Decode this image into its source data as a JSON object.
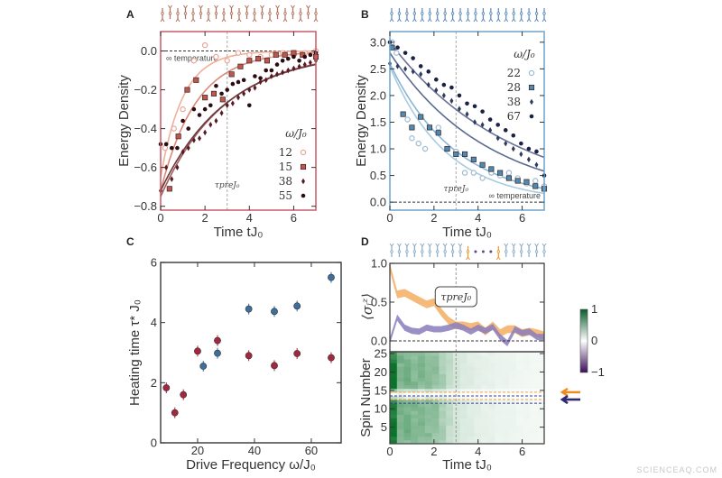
{
  "watermark": "SCIENCEAQ.COM",
  "chart_data": [
    {
      "panel": "A",
      "type": "scatter",
      "xlabel": "Time tJ₀",
      "ylabel": "Energy Density",
      "xlim": [
        0,
        7
      ],
      "ylim": [
        -0.82,
        0.1
      ],
      "xticks": [
        "0",
        "2",
        "4",
        "6"
      ],
      "xtick_values": [
        0,
        2,
        4,
        6
      ],
      "yticks": [
        "0.0",
        "−0.2",
        "−0.4",
        "−0.6",
        "−0.8"
      ],
      "ytick_values": [
        0,
        -0.2,
        -0.4,
        -0.6,
        -0.8
      ],
      "frame_color": "#c85a68",
      "reference_line": {
        "value": 0,
        "label": "∞ temperature"
      },
      "vline": {
        "value": 3,
        "label": "τpreJ₀"
      },
      "legend_title": "ω/J₀",
      "legend_placement": "bottom-right",
      "series": [
        {
          "name": "12",
          "marker": "circle",
          "color": "#e9a697",
          "fit_color": "#f2b09a",
          "fit": {
            "E0": -0.65,
            "tau": 1.0
          },
          "x": [
            0.2,
            0.6,
            1.0,
            1.5,
            2.0,
            2.5,
            3.0,
            3.5,
            4.0,
            4.5,
            5.0,
            5.5,
            6.0,
            6.5,
            7.0
          ],
          "y": [
            -0.5,
            -0.4,
            -0.3,
            -0.05,
            0.03,
            -0.03,
            -0.05,
            -0.01,
            -0.02,
            -0.03,
            -0.02,
            -0.01,
            -0.02,
            -0.01,
            0.0
          ]
        },
        {
          "name": "15",
          "marker": "square",
          "color": "#c0574e",
          "fit_color": "#dc8a78",
          "fit": {
            "E0": -0.72,
            "tau": 1.6
          },
          "x": [
            0.4,
            0.8,
            1.2,
            1.6,
            2.0,
            2.4,
            2.8,
            3.2,
            3.6,
            4.0,
            4.4,
            4.8,
            5.2,
            5.6,
            6.0,
            6.4,
            7.0
          ],
          "y": [
            -0.71,
            -0.44,
            -0.2,
            -0.15,
            -0.24,
            -0.22,
            -0.25,
            -0.12,
            -0.08,
            -0.05,
            -0.04,
            -0.05,
            -0.02,
            -0.02,
            -0.01,
            -0.02,
            -0.03
          ]
        },
        {
          "name": "38",
          "marker": "diamond",
          "color": "#5a1a24",
          "fit_color": "#a06060",
          "fit": {
            "E0": -0.75,
            "tau": 2.9
          },
          "x": [
            0,
            0.25,
            0.5,
            0.75,
            1,
            1.25,
            1.5,
            1.75,
            2,
            2.25,
            2.5,
            2.75,
            3,
            3.25,
            3.5,
            3.75,
            4,
            4.25,
            4.5,
            4.75,
            5,
            5.25,
            5.5,
            5.75,
            6,
            6.25,
            6.5,
            6.75,
            7
          ],
          "y": [
            -0.72,
            -0.6,
            -0.66,
            -0.6,
            -0.52,
            -0.5,
            -0.46,
            -0.45,
            -0.42,
            -0.38,
            -0.36,
            -0.32,
            -0.28,
            -0.27,
            -0.24,
            -0.22,
            -0.2,
            -0.19,
            -0.16,
            -0.15,
            -0.13,
            -0.12,
            -0.11,
            -0.1,
            -0.09,
            -0.08,
            -0.07,
            -0.06,
            -0.05
          ]
        },
        {
          "name": "55",
          "marker": "dot",
          "color": "#2a0c12",
          "fit_color": "#6a3a3e",
          "fit": {
            "E0": -0.72,
            "tau": 3.0
          },
          "x": [
            0,
            0.25,
            0.5,
            0.75,
            1,
            1.25,
            1.5,
            1.75,
            2,
            2.25,
            2.5,
            2.75,
            3,
            3.25,
            3.5,
            3.75,
            4,
            4.25,
            4.5,
            4.75,
            5,
            5.25,
            5.5,
            5.75,
            6,
            6.25,
            6.5,
            6.75,
            7
          ],
          "y": [
            -0.48,
            -0.48,
            -0.5,
            -0.5,
            -0.36,
            -0.4,
            -0.3,
            -0.33,
            -0.3,
            -0.28,
            -0.18,
            -0.22,
            -0.2,
            -0.17,
            -0.16,
            -0.15,
            -0.28,
            -0.13,
            -0.14,
            -0.1,
            -0.1,
            -0.07,
            -0.05,
            -0.04,
            -0.03,
            -0.05,
            -0.03,
            -0.02,
            -0.01
          ]
        }
      ]
    },
    {
      "panel": "B",
      "type": "scatter",
      "xlabel": "Time tJ₀",
      "ylabel": "Energy Density",
      "xlim": [
        0,
        7
      ],
      "ylim": [
        -0.15,
        3.2
      ],
      "xticks": [
        "0",
        "2",
        "4",
        "6"
      ],
      "xtick_values": [
        0,
        2,
        4,
        6
      ],
      "yticks": [
        "0.0",
        "0.5",
        "1.0",
        "1.5",
        "2.0",
        "2.5",
        "3.0"
      ],
      "ytick_values": [
        0,
        0.5,
        1.0,
        1.5,
        2.0,
        2.5,
        3.0
      ],
      "frame_color": "#6fa3c9",
      "reference_line": {
        "value": 0,
        "label": "∞ temperature"
      },
      "vline": {
        "value": 3,
        "label": "τpreJ₀"
      },
      "legend_title": "ω/J₀",
      "legend_placement": "top-right",
      "series": [
        {
          "name": "22",
          "marker": "circle",
          "color": "#9dbbd0",
          "fit_color": "#a8cbe0",
          "fit": {
            "E0": 2.55,
            "tau": 2.55
          },
          "x": [
            0.1,
            0.3,
            0.8,
            1.0,
            1.3,
            1.6,
            2.2,
            2.6,
            3.0,
            3.4,
            3.8,
            4.2,
            4.6,
            5.0,
            5.4,
            5.8,
            6.2,
            6.6,
            7.0
          ],
          "y": [
            3.0,
            2.8,
            1.55,
            1.2,
            1.1,
            1.0,
            1.4,
            1.0,
            0.95,
            0.55,
            0.55,
            0.45,
            0.55,
            0.5,
            0.55,
            0.45,
            0.35,
            0.4,
            0.3
          ]
        },
        {
          "name": "28",
          "marker": "square",
          "color": "#4c8bb4",
          "fit_color": "#8ab6d4",
          "fit": {
            "E0": 2.6,
            "tau": 3.0
          },
          "x": [
            0.1,
            0.6,
            1.0,
            1.4,
            1.8,
            2.2,
            2.6,
            3.0,
            3.4,
            3.8,
            4.2,
            4.6,
            5.0,
            5.4,
            5.8,
            6.2,
            6.6,
            7.0
          ],
          "y": [
            2.9,
            1.65,
            1.4,
            1.6,
            1.4,
            1.3,
            1.0,
            0.9,
            0.9,
            0.8,
            0.7,
            0.62,
            0.55,
            0.45,
            0.4,
            0.38,
            0.3,
            0.25
          ]
        },
        {
          "name": "38",
          "marker": "diamond",
          "color": "#2c3c5e",
          "fit_color": "#5a6a90",
          "fit": {
            "E0": 2.8,
            "tau": 4.45
          },
          "x": [
            0,
            0.35,
            0.7,
            1.05,
            1.4,
            1.75,
            2.1,
            2.45,
            2.8,
            3.15,
            3.5,
            3.85,
            4.2,
            4.55,
            4.9,
            5.25,
            5.6,
            5.95,
            6.3,
            6.65,
            7.0
          ],
          "y": [
            2.6,
            2.55,
            2.5,
            2.45,
            2.4,
            2.2,
            2.1,
            2.0,
            1.9,
            1.75,
            1.65,
            1.5,
            1.45,
            1.35,
            1.2,
            1.1,
            1.0,
            0.9,
            0.8,
            0.7,
            0.5
          ]
        },
        {
          "name": "67",
          "marker": "dot",
          "color": "#1a2244",
          "fit_color": "#6a7098",
          "fit": {
            "E0": 3.0,
            "tau": 5.5
          },
          "x": [
            0,
            0.35,
            0.7,
            1.05,
            1.4,
            1.75,
            2.1,
            2.45,
            2.8,
            3.15,
            3.5,
            3.85,
            4.2,
            4.55,
            4.9,
            5.25,
            5.6,
            5.95,
            6.3,
            6.65,
            7.0
          ],
          "y": [
            3.0,
            2.9,
            2.8,
            2.7,
            2.55,
            2.45,
            2.3,
            2.2,
            2.15,
            2.0,
            1.85,
            1.8,
            1.7,
            1.55,
            1.45,
            1.35,
            1.25,
            1.1,
            1.0,
            0.95,
            0.5
          ]
        }
      ]
    },
    {
      "panel": "C",
      "type": "scatter",
      "xlabel": "Drive Frequency ω/J₀",
      "ylabel": "Heating time τ* J₀",
      "xlim": [
        7,
        70.5
      ],
      "ylim": [
        0,
        6
      ],
      "xticks": [
        "20",
        "40",
        "60"
      ],
      "xtick_values": [
        20,
        40,
        60
      ],
      "yticks": [
        "0",
        "2",
        "4",
        "6"
      ],
      "ytick_values": [
        0,
        2,
        4,
        6
      ],
      "series": [
        {
          "color": "#a3283f",
          "x": [
            9,
            12,
            15,
            20,
            27,
            38,
            47,
            55,
            67
          ],
          "y": [
            1.83,
            1.0,
            1.6,
            3.05,
            3.4,
            2.9,
            2.57,
            2.97,
            2.83
          ],
          "err": 0.18
        },
        {
          "color": "#3e6e9c",
          "x": [
            22,
            27,
            38,
            47,
            55,
            67
          ],
          "y": [
            2.55,
            2.98,
            4.45,
            4.37,
            4.55,
            5.5
          ],
          "err": 0.18
        }
      ]
    },
    {
      "panel": "D",
      "type": "line",
      "xlabel": "Time tJ₀",
      "ylabel": "⟨σᵢᶻ⟩",
      "xlim": [
        0,
        7
      ],
      "ylim": [
        -0.1,
        1.0
      ],
      "xticks": [
        "0",
        "2",
        "4",
        "6"
      ],
      "xtick_values": [
        0,
        2,
        4,
        6
      ],
      "yticks": [
        "1.0",
        "0.5",
        "0.0"
      ],
      "ytick_values": [
        1.0,
        0.5,
        0.0
      ],
      "vline": {
        "value": 3,
        "label": "τpreJ₀"
      },
      "series": [
        {
          "color": "#f4b36c",
          "band": 0.05,
          "x": [
            0,
            0.33,
            0.67,
            1,
            1.33,
            1.67,
            2,
            2.33,
            2.67,
            3,
            3.33,
            3.67,
            4,
            4.33,
            4.67,
            5,
            5.33,
            5.67,
            6,
            6.33,
            6.67,
            7
          ],
          "y": [
            0.95,
            0.6,
            0.62,
            0.57,
            0.52,
            0.47,
            0.5,
            0.37,
            0.26,
            0.2,
            0.2,
            0.18,
            0.2,
            0.12,
            0.2,
            0.1,
            0.15,
            0.15,
            0.1,
            0.12,
            0.1,
            0.07
          ]
        },
        {
          "color": "#8a7cbc",
          "band": 0.04,
          "x": [
            0,
            0.33,
            0.67,
            1,
            1.33,
            1.67,
            2,
            2.33,
            2.67,
            3,
            3.33,
            3.67,
            4,
            4.33,
            4.67,
            5,
            5.33,
            5.67,
            6,
            6.33,
            6.67,
            7
          ],
          "y": [
            0.0,
            0.3,
            0.17,
            0.13,
            0.12,
            0.17,
            0.15,
            0.15,
            0.17,
            0.2,
            0.17,
            0.12,
            0.17,
            0.13,
            0.18,
            0.05,
            -0.03,
            0.15,
            0.1,
            0.12,
            0.05,
            0.05
          ]
        }
      ],
      "heatmap": {
        "ylabel": "Spin Number",
        "yticks": [
          "25",
          "20",
          "15",
          "10",
          "5"
        ],
        "ytick_values": [
          25,
          20,
          15,
          10,
          5
        ],
        "spins": 25,
        "time_means": [
          0.95,
          0.55,
          0.55,
          0.52,
          0.5,
          0.48,
          0.45,
          0.35,
          0.25,
          0.18,
          0.15,
          0.13,
          0.12,
          0.1,
          0.1,
          0.08,
          0.08,
          0.07,
          0.06,
          0.06,
          0.05,
          0.05
        ],
        "spin_scale": [
          0.9,
          0.95,
          1,
          1,
          1,
          1,
          1,
          1,
          1,
          1,
          1,
          0.95,
          0.3,
          0.05,
          0.4,
          0.95,
          1,
          1,
          1,
          1,
          1,
          1,
          1,
          0.95,
          0.9
        ],
        "colorbar": {
          "ticks": [
            "1",
            "0",
            "−1"
          ],
          "tick_values": [
            1,
            0,
            -1
          ],
          "colors": [
            "#3a0e5a",
            "#ffffff",
            "#0a5a2a"
          ]
        },
        "marked_spins": {
          "orange": [
            12,
            15
          ],
          "navy": [
            13
          ]
        }
      }
    }
  ]
}
